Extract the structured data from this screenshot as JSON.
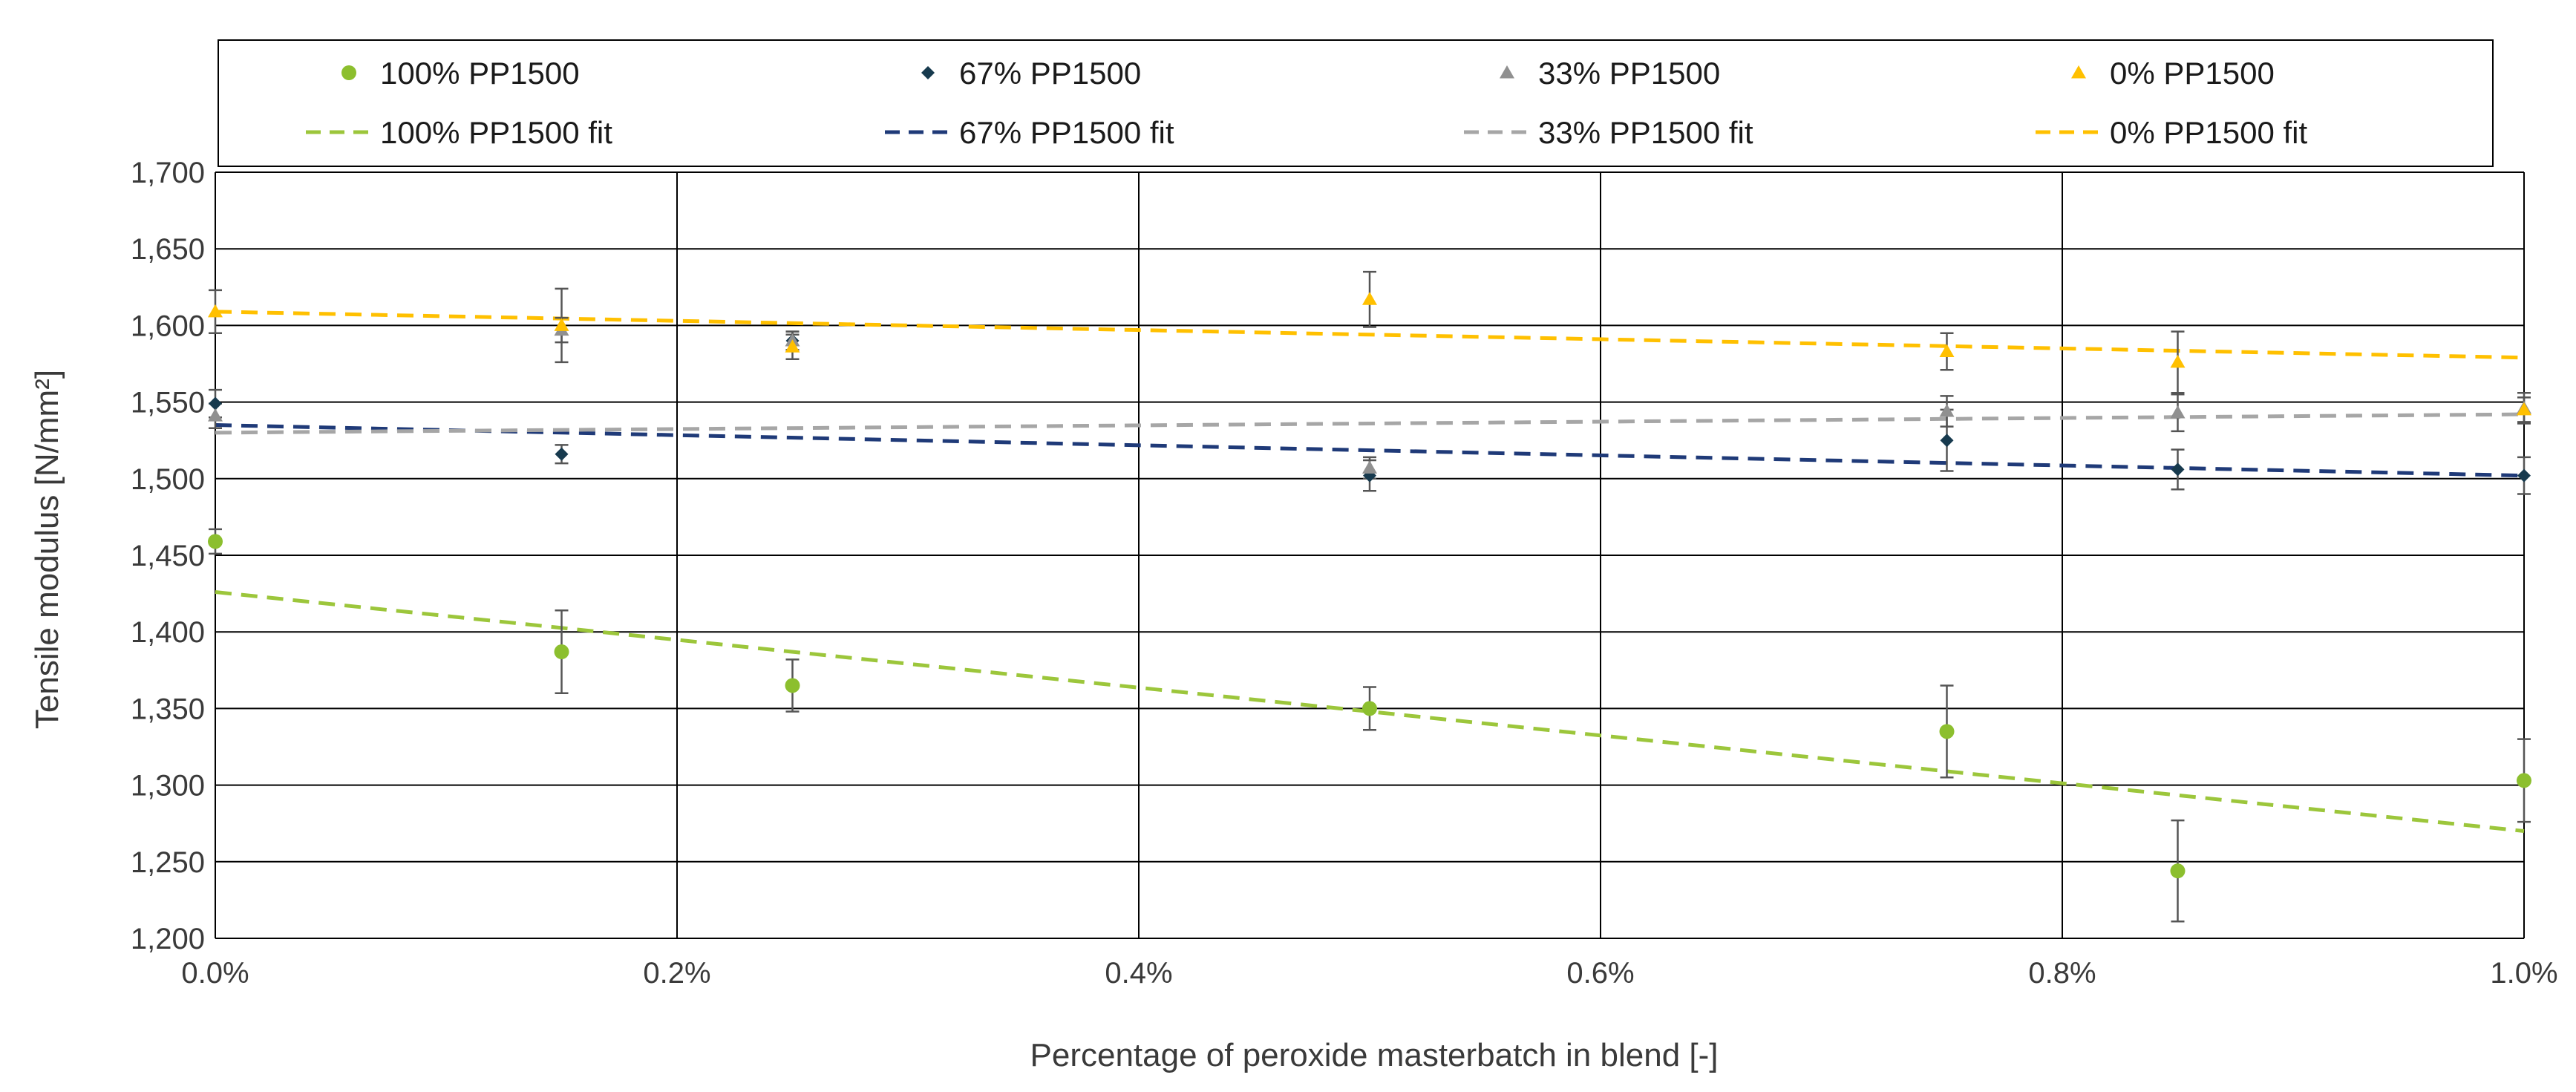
{
  "chart_data": {
    "type": "scatter",
    "xlabel": "Percentage of peroxide masterbatch in blend   [-]",
    "ylabel": "Tensile modulus  [N/mm²]",
    "xlim": [
      0,
      1.0
    ],
    "ylim": [
      1200,
      1700
    ],
    "x_ticks": [
      0,
      0.2,
      0.4,
      0.6,
      0.8,
      1.0
    ],
    "x_tick_labels": [
      "0.0%",
      "0.2%",
      "0.4%",
      "0.6%",
      "0.8%",
      "1.0%"
    ],
    "y_ticks": [
      1200,
      1250,
      1300,
      1350,
      1400,
      1450,
      1500,
      1550,
      1600,
      1650,
      1700
    ],
    "y_tick_labels": [
      "1,200",
      "1,250",
      "1,300",
      "1,350",
      "1,400",
      "1,450",
      "1,500",
      "1,550",
      "1,600",
      "1,650",
      "1,700"
    ],
    "grid": true,
    "legend_position": "top",
    "series": [
      {
        "name": "100% PP1500",
        "fit_name": "100% PP1500 fit",
        "color": "#8cbf2e",
        "fit_color": "#9cc63b",
        "marker": "circle",
        "x": [
          0,
          0.15,
          0.25,
          0.5,
          0.75,
          0.85,
          1.0
        ],
        "y": [
          1459,
          1387,
          1365,
          1350,
          1335,
          1244,
          1303
        ],
        "err": [
          8,
          27,
          17,
          14,
          30,
          33,
          27
        ],
        "fit": [
          [
            0,
            1426
          ],
          [
            1.0,
            1270
          ]
        ]
      },
      {
        "name": "67% PP1500",
        "fit_name": "67% PP1500 fit",
        "color": "#173a4e",
        "fit_color": "#1f3a78",
        "marker": "diamond",
        "x": [
          0,
          0.15,
          0.25,
          0.5,
          0.75,
          0.85,
          1.0
        ],
        "y": [
          1549,
          1516,
          1590,
          1502,
          1525,
          1506,
          1502
        ],
        "err": [
          9,
          6,
          6,
          10,
          20,
          13,
          12
        ],
        "fit": [
          [
            0,
            1535
          ],
          [
            1.0,
            1502
          ]
        ]
      },
      {
        "name": "33% PP1500",
        "fit_name": "33% PP1500 fit",
        "color": "#909090",
        "fit_color": "#a6a6a6",
        "marker": "triangle",
        "x": [
          0,
          0.15,
          0.25,
          0.5,
          0.75,
          0.85,
          1.0
        ],
        "y": [
          1541,
          1597,
          1590,
          1507,
          1544,
          1543,
          1546
        ],
        "err": [
          8,
          8,
          6,
          7,
          10,
          12,
          10
        ],
        "fit": [
          [
            0,
            1530
          ],
          [
            1.0,
            1542
          ]
        ]
      },
      {
        "name": "0% PP1500",
        "fit_name": "0% PP1500 fit",
        "color": "#ffc000",
        "fit_color": "#ffc000",
        "marker": "triangle",
        "x": [
          0,
          0.15,
          0.25,
          0.5,
          0.75,
          0.85,
          1.0
        ],
        "y": [
          1609,
          1600,
          1586,
          1617,
          1583,
          1576,
          1545
        ],
        "err": [
          14,
          24,
          8,
          18,
          12,
          20,
          8
        ],
        "fit": [
          [
            0,
            1609
          ],
          [
            1.0,
            1579
          ]
        ]
      }
    ]
  }
}
